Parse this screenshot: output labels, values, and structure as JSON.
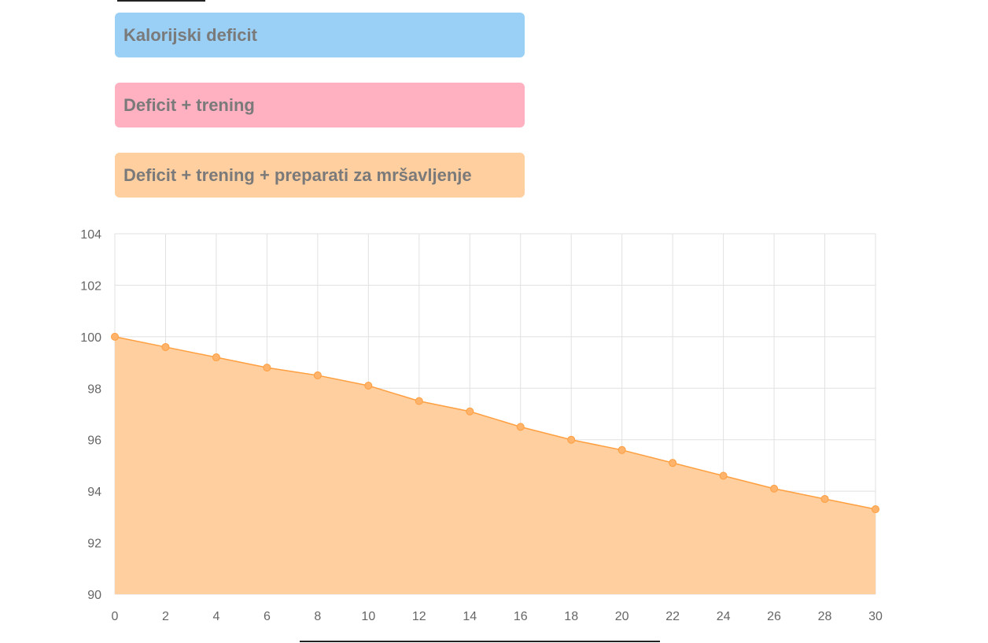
{
  "legend": {
    "items": [
      {
        "label": "Kalorijski deficit",
        "color": "#9ad0f5"
      },
      {
        "label": "Deficit + trening",
        "color": "#ffb1c1"
      },
      {
        "label": "Deficit + trening + preparati za mršavljenje",
        "color": "#ffcf9f"
      }
    ]
  },
  "chart_data": {
    "type": "area",
    "x": [
      0,
      2,
      4,
      6,
      8,
      10,
      12,
      14,
      16,
      18,
      20,
      22,
      24,
      26,
      28,
      30
    ],
    "series": [
      {
        "values": [
          100,
          99.6,
          99.2,
          98.8,
          98.5,
          98.1,
          97.5,
          97.1,
          96.5,
          96.0,
          95.6,
          95.1,
          94.6,
          94.1,
          93.7,
          93.3
        ],
        "color": "#ff9f40",
        "fill": "#ffcf9f"
      }
    ],
    "xlim": [
      0,
      30
    ],
    "ylim": [
      90,
      104
    ],
    "xticks": [
      0,
      2,
      4,
      6,
      8,
      10,
      12,
      14,
      16,
      18,
      20,
      22,
      24,
      26,
      28,
      30
    ],
    "yticks": [
      90,
      92,
      94,
      96,
      98,
      100,
      102,
      104
    ],
    "grid": true
  }
}
